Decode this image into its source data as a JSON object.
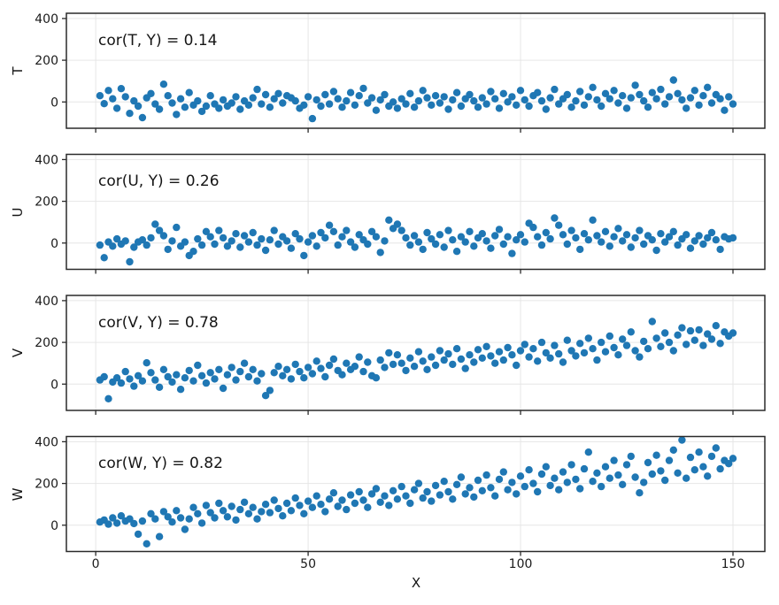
{
  "chart_data": {
    "type": "scatter",
    "title": "",
    "xlabel": "X",
    "xlim": [
      -6.9,
      157.5
    ],
    "ylim": [
      -126,
      425
    ],
    "xticks": [
      0,
      50,
      100,
      150
    ],
    "yticks": [
      0,
      200,
      400
    ],
    "grid": true,
    "colors": {
      "point": "#1f77b4",
      "grid": "#e6e6e6",
      "frame": "#2a2a2a",
      "text": "#1a1a1a"
    },
    "x": [
      1,
      2,
      3,
      4,
      5,
      6,
      7,
      8,
      9,
      10,
      11,
      12,
      13,
      14,
      15,
      16,
      17,
      18,
      19,
      20,
      21,
      22,
      23,
      24,
      25,
      26,
      27,
      28,
      29,
      30,
      31,
      32,
      33,
      34,
      35,
      36,
      37,
      38,
      39,
      40,
      41,
      42,
      43,
      44,
      45,
      46,
      47,
      48,
      49,
      50,
      51,
      52,
      53,
      54,
      55,
      56,
      57,
      58,
      59,
      60,
      61,
      62,
      63,
      64,
      65,
      66,
      67,
      68,
      69,
      70,
      71,
      72,
      73,
      74,
      75,
      76,
      77,
      78,
      79,
      80,
      81,
      82,
      83,
      84,
      85,
      86,
      87,
      88,
      89,
      90,
      91,
      92,
      93,
      94,
      95,
      96,
      97,
      98,
      99,
      100,
      101,
      102,
      103,
      104,
      105,
      106,
      107,
      108,
      109,
      110,
      111,
      112,
      113,
      114,
      115,
      116,
      117,
      118,
      119,
      120,
      121,
      122,
      123,
      124,
      125,
      126,
      127,
      128,
      129,
      130,
      131,
      132,
      133,
      134,
      135,
      136,
      137,
      138,
      139,
      140,
      141,
      142,
      143,
      144,
      145,
      146,
      147,
      148,
      149,
      150
    ],
    "panels": [
      {
        "ylabel": "T",
        "annotation": "cor(T, Y) = 0.14",
        "y": [
          30,
          -8,
          55,
          15,
          -30,
          64,
          25,
          -55,
          5,
          -20,
          -75,
          20,
          40,
          -10,
          -35,
          85,
          30,
          -5,
          -60,
          15,
          -25,
          45,
          -15,
          5,
          -45,
          -20,
          30,
          -10,
          -30,
          10,
          -20,
          -5,
          25,
          -35,
          5,
          -15,
          20,
          60,
          -10,
          35,
          -25,
          15,
          40,
          -5,
          30,
          20,
          5,
          -30,
          -15,
          25,
          -80,
          10,
          -20,
          35,
          -10,
          50,
          15,
          -25,
          5,
          45,
          -15,
          30,
          65,
          -5,
          20,
          -40,
          10,
          35,
          -20,
          0,
          -30,
          15,
          -10,
          40,
          -25,
          5,
          55,
          20,
          -15,
          30,
          -5,
          25,
          -35,
          10,
          45,
          -20,
          15,
          35,
          5,
          -25,
          20,
          -10,
          50,
          15,
          -30,
          40,
          0,
          25,
          -15,
          55,
          10,
          -20,
          30,
          45,
          5,
          -35,
          20,
          60,
          -10,
          15,
          35,
          -25,
          5,
          50,
          -15,
          25,
          70,
          10,
          -20,
          40,
          15,
          55,
          -5,
          30,
          -30,
          20,
          80,
          35,
          5,
          -25,
          45,
          15,
          60,
          -10,
          25,
          105,
          40,
          10,
          -30,
          20,
          55,
          -15,
          30,
          70,
          -5,
          35,
          15,
          -40,
          25,
          -10
        ]
      },
      {
        "ylabel": "U",
        "annotation": "cor(U, Y) = 0.26",
        "y": [
          -10,
          -70,
          5,
          -15,
          20,
          -5,
          10,
          -90,
          -20,
          5,
          15,
          -10,
          25,
          90,
          60,
          35,
          -30,
          10,
          75,
          -15,
          5,
          -60,
          -40,
          20,
          -10,
          55,
          30,
          -5,
          60,
          25,
          -15,
          10,
          45,
          -20,
          35,
          5,
          50,
          -10,
          20,
          -35,
          15,
          60,
          -5,
          30,
          10,
          -25,
          45,
          20,
          -60,
          5,
          35,
          -15,
          50,
          25,
          85,
          55,
          -10,
          30,
          60,
          5,
          -20,
          40,
          15,
          -5,
          55,
          30,
          -45,
          10,
          110,
          70,
          90,
          60,
          25,
          -10,
          35,
          5,
          -30,
          50,
          20,
          -5,
          40,
          -20,
          60,
          15,
          -40,
          30,
          5,
          55,
          -15,
          25,
          45,
          10,
          -25,
          35,
          65,
          -5,
          30,
          -50,
          15,
          40,
          5,
          95,
          75,
          30,
          -10,
          50,
          20,
          120,
          85,
          40,
          -5,
          60,
          25,
          -30,
          45,
          15,
          110,
          35,
          5,
          55,
          -15,
          30,
          70,
          10,
          40,
          -20,
          25,
          60,
          -5,
          35,
          15,
          -35,
          45,
          5,
          30,
          55,
          -10,
          20,
          40,
          -25,
          10,
          35,
          -5,
          25,
          50,
          15,
          -30,
          30,
          20,
          25
        ]
      },
      {
        "ylabel": "V",
        "annotation": "cor(V, Y) = 0.78",
        "y": [
          20,
          35,
          -70,
          10,
          30,
          5,
          60,
          25,
          -10,
          40,
          15,
          102,
          55,
          20,
          -15,
          70,
          35,
          10,
          45,
          -25,
          30,
          65,
          15,
          90,
          40,
          5,
          55,
          25,
          70,
          -20,
          45,
          80,
          20,
          60,
          100,
          35,
          70,
          15,
          50,
          -55,
          -30,
          55,
          85,
          40,
          70,
          25,
          95,
          60,
          30,
          80,
          50,
          110,
          75,
          35,
          90,
          120,
          65,
          45,
          100,
          70,
          85,
          130,
          60,
          105,
          40,
          30,
          115,
          80,
          150,
          95,
          140,
          100,
          65,
          125,
          85,
          155,
          110,
          70,
          130,
          90,
          160,
          115,
          145,
          95,
          170,
          120,
          75,
          140,
          105,
          165,
          125,
          180,
          135,
          100,
          155,
          115,
          175,
          140,
          90,
          160,
          190,
          130,
          170,
          110,
          200,
          150,
          125,
          185,
          145,
          105,
          210,
          160,
          135,
          195,
          150,
          220,
          170,
          115,
          200,
          155,
          230,
          175,
          140,
          215,
          185,
          250,
          160,
          130,
          205,
          170,
          300,
          220,
          180,
          245,
          200,
          160,
          235,
          270,
          190,
          255,
          210,
          260,
          185,
          240,
          215,
          280,
          195,
          250,
          230,
          245
        ]
      },
      {
        "ylabel": "W",
        "annotation": "cor(W, Y) = 0.82",
        "y": [
          15,
          25,
          5,
          35,
          10,
          45,
          20,
          30,
          8,
          -43,
          20,
          -89,
          55,
          30,
          -55,
          65,
          40,
          15,
          70,
          35,
          -20,
          30,
          85,
          55,
          10,
          95,
          60,
          35,
          105,
          70,
          40,
          90,
          25,
          75,
          110,
          55,
          85,
          30,
          65,
          100,
          60,
          120,
          80,
          45,
          105,
          70,
          130,
          95,
          55,
          115,
          85,
          140,
          100,
          65,
          125,
          155,
          90,
          120,
          75,
          145,
          105,
          160,
          120,
          85,
          150,
          175,
          110,
          140,
          95,
          165,
          125,
          185,
          140,
          105,
          170,
          200,
          130,
          160,
          115,
          190,
          145,
          210,
          160,
          125,
          195,
          230,
          150,
          180,
          135,
          215,
          165,
          240,
          180,
          140,
          220,
          255,
          170,
          205,
          150,
          235,
          185,
          265,
          200,
          160,
          245,
          280,
          190,
          225,
          170,
          255,
          205,
          290,
          220,
          175,
          270,
          350,
          210,
          250,
          185,
          280,
          225,
          310,
          240,
          195,
          290,
          330,
          230,
          155,
          205,
          300,
          245,
          335,
          260,
          215,
          310,
          360,
          250,
          408,
          225,
          325,
          265,
          350,
          280,
          235,
          330,
          370,
          270,
          310,
          295,
          320
        ]
      }
    ]
  }
}
